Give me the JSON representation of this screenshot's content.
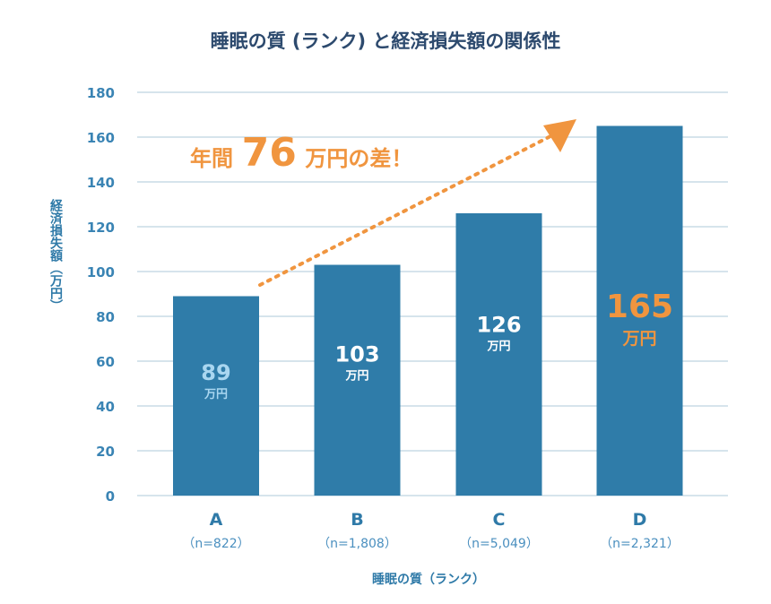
{
  "chart_data": {
    "type": "bar",
    "title": "睡眠の質 (ランク) と経済損失額の関係性",
    "xlabel": "睡眠の質（ランク）",
    "ylabel": "経済損失額（万円）",
    "ylim": [
      0,
      180
    ],
    "yticks": [
      0,
      20,
      40,
      60,
      80,
      100,
      120,
      140,
      160,
      180
    ],
    "grid": true,
    "categories": [
      "A",
      "B",
      "C",
      "D"
    ],
    "sample_sizes": [
      "（n=822）",
      "（n=1,808）",
      "（n=5,049）",
      "（n=2,321）"
    ],
    "values": [
      89,
      103,
      126,
      165
    ],
    "value_unit": "万円",
    "bar_color": "#2f7ca9",
    "label_colors": [
      "#a9d6f0",
      "#ffffff",
      "#ffffff",
      "#f0953f"
    ],
    "annotation": {
      "prefix": "年間",
      "number": "76",
      "suffix": "万円の差！",
      "color": "#f0953f"
    }
  }
}
